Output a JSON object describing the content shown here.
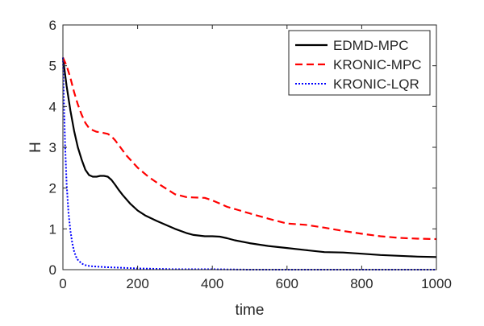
{
  "chart_data": {
    "type": "line",
    "title": "",
    "xlabel": "time",
    "ylabel": "H",
    "xlim": [
      0,
      1000
    ],
    "ylim": [
      0,
      6
    ],
    "xticks": [
      0,
      200,
      400,
      600,
      800,
      1000
    ],
    "yticks": [
      0,
      1,
      2,
      3,
      4,
      5,
      6
    ],
    "grid": false,
    "legend_position": "top-right",
    "series": [
      {
        "name": "EDMD-MPC",
        "color": "#000000",
        "style": "solid",
        "x": [
          0,
          10,
          20,
          30,
          40,
          50,
          60,
          70,
          80,
          90,
          100,
          110,
          120,
          130,
          140,
          150,
          160,
          180,
          200,
          220,
          250,
          280,
          300,
          330,
          350,
          380,
          400,
          420,
          440,
          460,
          500,
          550,
          600,
          650,
          700,
          750,
          800,
          850,
          900,
          950,
          1000
        ],
        "y": [
          5.2,
          4.5,
          3.9,
          3.4,
          3.0,
          2.7,
          2.45,
          2.32,
          2.28,
          2.28,
          2.3,
          2.3,
          2.28,
          2.2,
          2.08,
          1.95,
          1.83,
          1.62,
          1.45,
          1.33,
          1.2,
          1.08,
          1.0,
          0.9,
          0.85,
          0.82,
          0.82,
          0.81,
          0.77,
          0.72,
          0.65,
          0.58,
          0.53,
          0.48,
          0.43,
          0.42,
          0.39,
          0.36,
          0.34,
          0.32,
          0.31
        ]
      },
      {
        "name": "KRONIC-MPC",
        "color": "#ff0000",
        "style": "dashed",
        "x": [
          0,
          10,
          20,
          30,
          40,
          50,
          60,
          70,
          80,
          90,
          100,
          110,
          120,
          130,
          140,
          150,
          170,
          200,
          230,
          260,
          300,
          330,
          350,
          380,
          400,
          420,
          440,
          470,
          500,
          550,
          600,
          650,
          700,
          750,
          800,
          850,
          900,
          950,
          1000
        ],
        "y": [
          5.2,
          5.0,
          4.7,
          4.35,
          4.05,
          3.8,
          3.6,
          3.47,
          3.42,
          3.38,
          3.37,
          3.35,
          3.33,
          3.27,
          3.17,
          3.05,
          2.8,
          2.5,
          2.27,
          2.08,
          1.85,
          1.78,
          1.77,
          1.76,
          1.7,
          1.62,
          1.54,
          1.46,
          1.38,
          1.25,
          1.13,
          1.1,
          1.03,
          0.95,
          0.88,
          0.82,
          0.78,
          0.76,
          0.75
        ]
      },
      {
        "name": "KRONIC-LQR",
        "color": "#0000ff",
        "style": "dotted",
        "x": [
          0,
          3,
          6,
          10,
          15,
          20,
          25,
          30,
          35,
          40,
          50,
          60,
          70,
          80,
          100,
          120,
          150,
          200,
          250,
          300,
          400,
          500,
          600,
          800,
          1000
        ],
        "y": [
          5.2,
          4.0,
          3.0,
          2.1,
          1.4,
          0.95,
          0.65,
          0.45,
          0.32,
          0.24,
          0.15,
          0.11,
          0.09,
          0.08,
          0.07,
          0.06,
          0.05,
          0.03,
          0.02,
          0.01,
          0.01,
          0.0,
          0.0,
          0.0,
          0.0
        ]
      }
    ]
  }
}
